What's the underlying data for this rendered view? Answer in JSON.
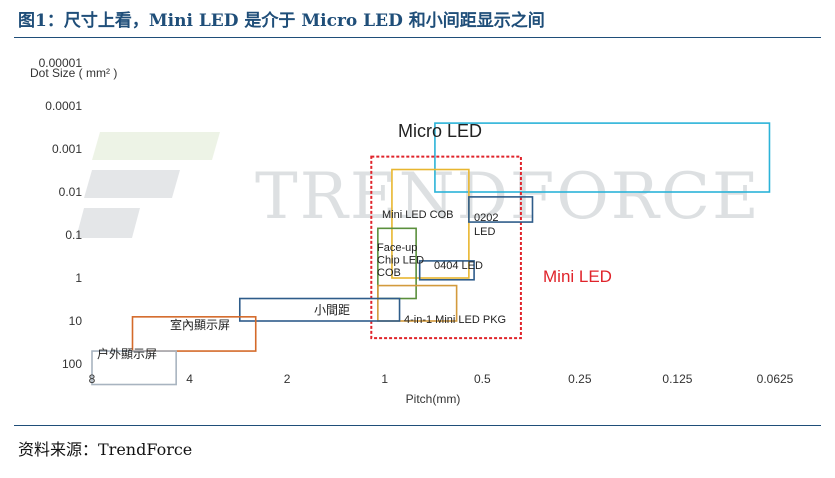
{
  "figure": {
    "title": "图1：尺寸上看，Mini LED 是介于 Micro LED 和小间距显示之间",
    "source": "资料来源：TrendForce",
    "watermark": "TRENDFORCE"
  },
  "chart_data": {
    "type": "box-region",
    "xlabel": "Pitch(mm)",
    "ylabel": "Dot Size ( mm² )",
    "x_scale": "log2-reversed",
    "y_scale": "log10-reversed",
    "x_ticks": [
      "8",
      "4",
      "2",
      "1",
      "0.5",
      "0.25",
      "0.125",
      "0.0625"
    ],
    "x_tick_values": [
      8,
      4,
      2,
      1,
      0.5,
      0.25,
      0.125,
      0.0625
    ],
    "y_ticks": [
      "0.00001",
      "0.0001",
      "0.001",
      "0.01",
      "0.1",
      "1",
      "10",
      "100"
    ],
    "y_tick_values": [
      1e-05,
      0.0001,
      0.001,
      0.01,
      0.1,
      1,
      10,
      100
    ],
    "xlim": [
      8,
      0.0625
    ],
    "ylim": [
      1e-05,
      100
    ],
    "grid": false,
    "regions": [
      {
        "label": "Micro LED",
        "pitch": [
          0.7,
          0.065
        ],
        "dot_size": [
          0.00025,
          0.01
        ],
        "color": "#2bb3d8",
        "style": "solid"
      },
      {
        "label": "Mini LED",
        "pitch": [
          1.1,
          0.38
        ],
        "dot_size": [
          0.0015,
          25
        ],
        "color": "#e0242b",
        "style": "dashed"
      },
      {
        "label": "Mini LED COB",
        "pitch": [
          0.95,
          0.55
        ],
        "dot_size": [
          0.003,
          1
        ],
        "color": "#e8b630",
        "style": "solid"
      },
      {
        "label": "0202 LED",
        "pitch": [
          0.55,
          0.35
        ],
        "dot_size": [
          0.013,
          0.05
        ],
        "color": "#2e5c8a",
        "style": "solid"
      },
      {
        "label": "Face-up Chip LED COB",
        "pitch": [
          1.05,
          0.8
        ],
        "dot_size": [
          0.07,
          3
        ],
        "color": "#5a8f3c",
        "style": "solid"
      },
      {
        "label": "0404 LED",
        "pitch": [
          0.78,
          0.53
        ],
        "dot_size": [
          0.4,
          1.1
        ],
        "color": "#2e5c8a",
        "style": "solid"
      },
      {
        "label": "4-in-1 Mini LED PKG",
        "pitch": [
          1.05,
          0.6
        ],
        "dot_size": [
          1.5,
          10
        ],
        "color": "#d39a3c",
        "style": "solid"
      },
      {
        "label": "小間距",
        "pitch": [
          2.8,
          0.9
        ],
        "dot_size": [
          3,
          10
        ],
        "color": "#2e5c8a",
        "style": "solid"
      },
      {
        "label": "室內顯示屏",
        "pitch": [
          6.0,
          2.5
        ],
        "dot_size": [
          8,
          50
        ],
        "color": "#d46a2a",
        "style": "solid"
      },
      {
        "label": "户外顯示屏",
        "pitch": [
          8.0,
          4.4
        ],
        "dot_size": [
          50,
          300
        ],
        "color": "#a8b4c0",
        "style": "solid"
      }
    ],
    "label_colors": {
      "Mini LED": "#e0242b"
    }
  }
}
